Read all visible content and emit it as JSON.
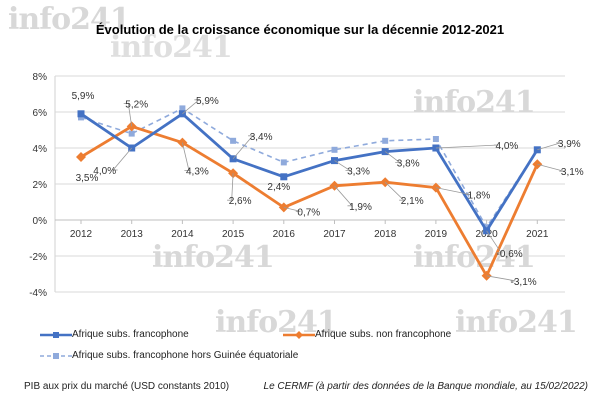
{
  "watermark": "info241",
  "chart_data": {
    "type": "line",
    "title": "Évolution de la croissance économique sur la décennie 2012-2021",
    "categories": [
      "2012",
      "2013",
      "2014",
      "2015",
      "2016",
      "2017",
      "2018",
      "2019",
      "2020",
      "2021"
    ],
    "ylim": [
      -4,
      8
    ],
    "yticks": [
      -4,
      -2,
      0,
      2,
      4,
      6,
      8
    ],
    "ytick_labels": [
      "-4%",
      "-2%",
      "0%",
      "2%",
      "4%",
      "6%",
      "8%"
    ],
    "grid": true,
    "legend_position": "bottom",
    "series": [
      {
        "name": "Afrique subs. francophone",
        "color": "#4472C4",
        "style": "solid",
        "marker": "square",
        "values": [
          5.9,
          4.0,
          5.9,
          3.4,
          2.4,
          3.3,
          3.8,
          4.0,
          -0.6,
          3.9
        ],
        "labels": [
          "5,9%",
          "4,0%",
          "5,9%",
          "3,4%",
          "2,4%",
          "3,3%",
          "3,8%",
          "4,0%",
          "-0,6%",
          "3,9%"
        ]
      },
      {
        "name": "Afrique subs. non francophone",
        "color": "#ED7D31",
        "style": "solid",
        "marker": "diamond",
        "values": [
          3.5,
          5.2,
          4.3,
          2.6,
          0.7,
          1.9,
          2.1,
          1.8,
          -3.1,
          3.1
        ],
        "labels": [
          "3,5%",
          "5,2%",
          "4,3%",
          "2,6%",
          "0,7%",
          "1,9%",
          "2,1%",
          "1,8%",
          "-3,1%",
          "3,1%"
        ]
      },
      {
        "name": "Afrique subs. francophone hors Guinée équatoriale",
        "color": "#8FAADC",
        "style": "dashed",
        "marker": "square",
        "values": [
          5.7,
          4.8,
          6.2,
          4.4,
          3.2,
          3.9,
          4.4,
          4.5,
          -0.4,
          3.9
        ]
      }
    ]
  },
  "footer": {
    "left": "PIB aux prix du marché (USD constants 2010)",
    "right": "Le CERMF (à partir des données de la Banque mondiale, au 15/02/2022)"
  }
}
